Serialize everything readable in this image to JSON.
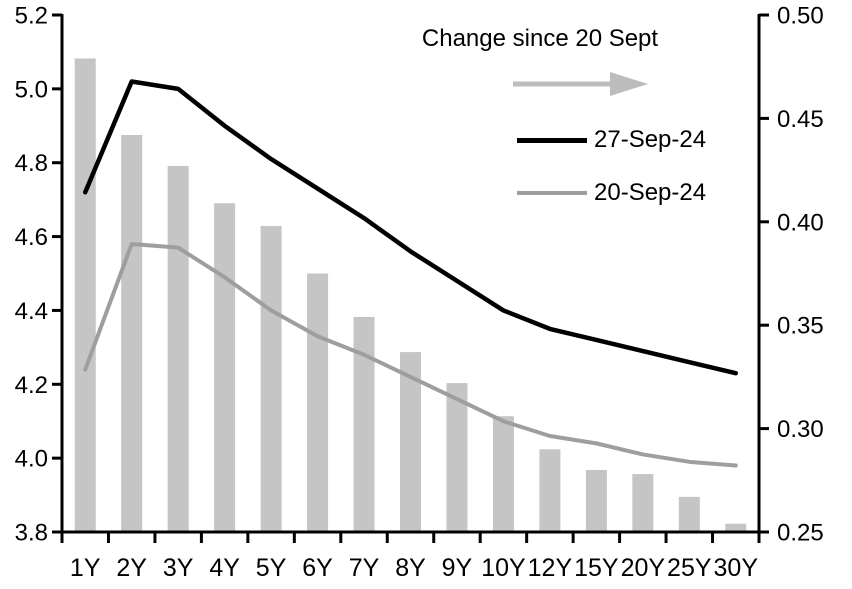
{
  "chart_data": {
    "type": "combo",
    "title": "",
    "categories": [
      "1Y",
      "2Y",
      "3Y",
      "4Y",
      "5Y",
      "6Y",
      "7Y",
      "8Y",
      "9Y",
      "10Y",
      "12Y",
      "15Y",
      "20Y",
      "25Y",
      "30Y"
    ],
    "left_axis": {
      "min": 3.8,
      "max": 5.2,
      "ticks": [
        {
          "value": 3.8,
          "label": "3.8"
        },
        {
          "value": 4.0,
          "label": "4.0"
        },
        {
          "value": 4.2,
          "label": "4.2"
        },
        {
          "value": 4.4,
          "label": "4.4"
        },
        {
          "value": 4.6,
          "label": "4.6"
        },
        {
          "value": 4.8,
          "label": "4.8"
        },
        {
          "value": 5.0,
          "label": "5.0"
        },
        {
          "value": 5.2,
          "label": "5.2"
        }
      ]
    },
    "right_axis": {
      "min": 0.25,
      "max": 0.5,
      "ticks": [
        {
          "value": 0.25,
          "label": "0.25"
        },
        {
          "value": 0.3,
          "label": "0.30"
        },
        {
          "value": 0.35,
          "label": "0.35"
        },
        {
          "value": 0.4,
          "label": "0.40"
        },
        {
          "value": 0.45,
          "label": "0.45"
        },
        {
          "value": 0.5,
          "label": "0.50"
        }
      ]
    },
    "series": [
      {
        "name": "Change since 20 Sept",
        "type": "bar",
        "axis": "right",
        "color": "#c5c5c5",
        "values": [
          0.479,
          0.442,
          0.427,
          0.409,
          0.398,
          0.375,
          0.354,
          0.337,
          0.322,
          0.306,
          0.29,
          0.28,
          0.278,
          0.267,
          0.254
        ]
      },
      {
        "name": "27-Sep-24",
        "type": "line",
        "axis": "left",
        "color": "#000000",
        "values": [
          4.72,
          5.02,
          5.0,
          4.9,
          4.81,
          4.73,
          4.65,
          4.56,
          4.48,
          4.4,
          4.35,
          4.32,
          4.29,
          4.26,
          4.23
        ]
      },
      {
        "name": "20-Sep-24",
        "type": "line",
        "axis": "left",
        "color": "#9e9e9e",
        "values": [
          4.24,
          4.58,
          4.57,
          4.49,
          4.4,
          4.33,
          4.28,
          4.22,
          4.16,
          4.1,
          4.06,
          4.04,
          4.01,
          3.99,
          3.98
        ]
      }
    ],
    "legend": {
      "position": "top-right",
      "title": "Change since 20 Sept",
      "arrow_color": "#bcbcbc",
      "entries": [
        {
          "label": "27-Sep-24",
          "color": "#000000"
        },
        {
          "label": "20-Sep-24",
          "color": "#9e9e9e"
        }
      ]
    },
    "grid": false,
    "background": "#ffffff",
    "axis_color": "#000000"
  }
}
